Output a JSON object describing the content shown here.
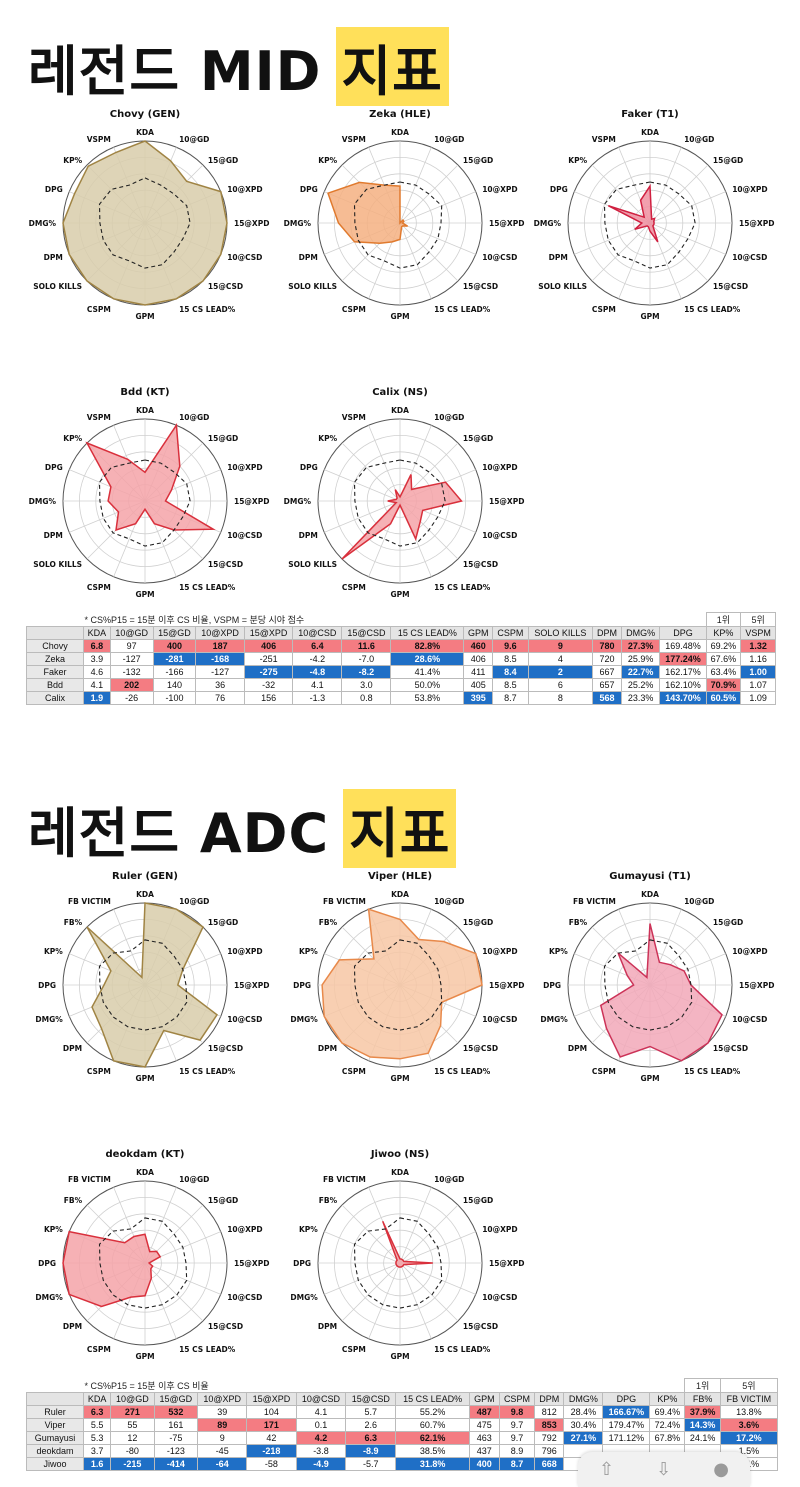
{
  "sections": [
    {
      "heading": "레전드 MID",
      "heading_hl": "지표",
      "note": "* CS%P15 = 15분 이후 CS 비율, VSPM = 분당 시야 점수",
      "legend": {
        "rank1": "1위",
        "rank5": "5위"
      },
      "columns": [
        "KDA",
        "10@GD",
        "15@GD",
        "10@XPD",
        "15@XPD",
        "10@CSD",
        "15@CSD",
        "15 CS LEAD%",
        "GPM",
        "CSPM",
        "SOLO KILLS",
        "DPM",
        "DMG%",
        "DPG",
        "KP%",
        "VSPM"
      ],
      "rows": [
        {
          "name": "Chovy",
          "cells": [
            "6.8",
            "97",
            "400",
            "187",
            "406",
            "6.4",
            "11.6",
            "82.8%",
            "460",
            "9.6",
            "9",
            "780",
            "27.3%",
            "169.48%",
            "69.2%",
            "1.32"
          ]
        },
        {
          "name": "Zeka",
          "cells": [
            "3.9",
            "-127",
            "-281",
            "-168",
            "-251",
            "-4.2",
            "-7.0",
            "28.6%",
            "406",
            "8.5",
            "4",
            "720",
            "25.9%",
            "177.24%",
            "67.6%",
            "1.16"
          ]
        },
        {
          "name": "Faker",
          "cells": [
            "4.6",
            "-132",
            "-166",
            "-127",
            "-275",
            "-4.8",
            "-8.2",
            "41.4%",
            "411",
            "8.4",
            "2",
            "667",
            "22.7%",
            "162.17%",
            "63.4%",
            "1.00"
          ]
        },
        {
          "name": "Bdd",
          "cells": [
            "4.1",
            "202",
            "140",
            "36",
            "-32",
            "4.1",
            "3.0",
            "50.0%",
            "405",
            "8.5",
            "6",
            "657",
            "25.2%",
            "162.10%",
            "70.9%",
            "1.07"
          ]
        },
        {
          "name": "Calix",
          "cells": [
            "1.9",
            "-26",
            "-100",
            "76",
            "156",
            "-1.3",
            "0.8",
            "53.8%",
            "395",
            "8.7",
            "8",
            "568",
            "23.3%",
            "143.70%",
            "60.5%",
            "1.09"
          ]
        }
      ],
      "charts": [
        {
          "title": "Chovy (GEN)",
          "axes": [
            "KDA",
            "10@GD",
            "15@GD",
            "10@XPD",
            "15@XPD",
            "10@CSD",
            "15@CSD",
            "15 CS LEAD%",
            "GPM",
            "CSPM",
            "SOLO KILLS",
            "DPM",
            "DMG%",
            "DPG",
            "KP%",
            "VSPM"
          ],
          "values": [
            1.0,
            0.82,
            0.72,
            1.0,
            1.0,
            1.0,
            1.0,
            1.0,
            1.0,
            1.0,
            1.0,
            1.0,
            1.0,
            0.93,
            0.98,
            0.93
          ],
          "avg": [
            0.55,
            0.5,
            0.5,
            0.55,
            0.55,
            0.5,
            0.5,
            0.55,
            0.55,
            0.5,
            0.55,
            0.55,
            0.55,
            0.6,
            0.58,
            0.5
          ],
          "fill": "#d8ccaa",
          "stroke": "#a08444"
        },
        {
          "title": "Zeka (HLE)",
          "axes": [
            "KDA",
            "10@GD",
            "15@GD",
            "10@XPD",
            "15@XPD",
            "10@CSD",
            "15@CSD",
            "15 CS LEAD%",
            "GPM",
            "CSPM",
            "SOLO KILLS",
            "DPM",
            "DMG%",
            "DPG",
            "KP%",
            "VSPM"
          ],
          "values": [
            0.45,
            0.0,
            0.05,
            0.05,
            0.03,
            0.1,
            0.05,
            0.05,
            0.2,
            0.25,
            0.35,
            0.6,
            0.75,
            0.95,
            0.7,
            0.5
          ],
          "avg": [
            0.5,
            0.5,
            0.5,
            0.55,
            0.5,
            0.5,
            0.5,
            0.55,
            0.55,
            0.5,
            0.55,
            0.55,
            0.55,
            0.6,
            0.58,
            0.5
          ],
          "fill": "#f4b081",
          "stroke": "#e07a2e"
        },
        {
          "title": "Faker (T1)",
          "axes": [
            "KDA",
            "10@GD",
            "15@GD",
            "10@XPD",
            "15@XPD",
            "10@CSD",
            "15@CSD",
            "15 CS LEAD%",
            "GPM",
            "CSPM",
            "SOLO KILLS",
            "DPM",
            "DMG%",
            "DPG",
            "KP%",
            "VSPM"
          ],
          "values": [
            0.45,
            0.05,
            0.08,
            0.05,
            0.05,
            0.05,
            0.05,
            0.25,
            0.1,
            0.05,
            0.05,
            0.2,
            0.1,
            0.55,
            0.1,
            0.3
          ],
          "avg": [
            0.5,
            0.5,
            0.5,
            0.55,
            0.55,
            0.5,
            0.5,
            0.55,
            0.55,
            0.5,
            0.55,
            0.55,
            0.55,
            0.6,
            0.58,
            0.5
          ],
          "fill": "#f08fa0",
          "stroke": "#d02040"
        },
        {
          "title": "Bdd (KT)",
          "axes": [
            "KDA",
            "10@GD",
            "15@GD",
            "10@XPD",
            "15@XPD",
            "10@CSD",
            "15@CSD",
            "15 CS LEAD%",
            "GPM",
            "CSPM",
            "SOLO KILLS",
            "DPM",
            "DMG%",
            "DPG",
            "KP%",
            "VSPM"
          ],
          "values": [
            0.35,
            1.0,
            0.6,
            0.35,
            0.25,
            0.9,
            0.5,
            0.3,
            0.1,
            0.3,
            0.5,
            0.35,
            0.45,
            0.45,
            1.0,
            0.55
          ],
          "avg": [
            0.5,
            0.5,
            0.5,
            0.55,
            0.55,
            0.5,
            0.5,
            0.55,
            0.55,
            0.5,
            0.55,
            0.55,
            0.55,
            0.6,
            0.58,
            0.5
          ],
          "fill": "#f4a3a8",
          "stroke": "#d9303c"
        },
        {
          "title": "Calix (NS)",
          "axes": [
            "KDA",
            "10@GD",
            "15@GD",
            "10@XPD",
            "15@XPD",
            "10@CSD",
            "15@CSD",
            "15 CS LEAD%",
            "GPM",
            "CSPM",
            "SOLO KILLS",
            "DPM",
            "DMG%",
            "DPG",
            "KP%",
            "VSPM"
          ],
          "values": [
            0.05,
            0.35,
            0.2,
            0.6,
            0.75,
            0.3,
            0.35,
            0.5,
            0.05,
            0.3,
            1.0,
            0.05,
            0.15,
            0.05,
            0.05,
            0.15
          ],
          "avg": [
            0.5,
            0.5,
            0.5,
            0.55,
            0.55,
            0.5,
            0.5,
            0.55,
            0.55,
            0.5,
            0.55,
            0.55,
            0.55,
            0.6,
            0.58,
            0.5
          ],
          "fill": "#f4a3a8",
          "stroke": "#d9303c"
        }
      ]
    },
    {
      "heading": "레전드 ADC",
      "heading_hl": "지표",
      "note": "* CS%P15 = 15분 이후 CS 비율",
      "legend": {
        "rank1": "1위",
        "rank5": "5위"
      },
      "columns": [
        "KDA",
        "10@GD",
        "15@GD",
        "10@XPD",
        "15@XPD",
        "10@CSD",
        "15@CSD",
        "15 CS LEAD%",
        "GPM",
        "CSPM",
        "DPM",
        "DMG%",
        "DPG",
        "KP%",
        "FB%",
        "FB VICTIM"
      ],
      "rows": [
        {
          "name": "Ruler",
          "cells": [
            "6.3",
            "271",
            "532",
            "39",
            "104",
            "4.1",
            "5.7",
            "55.2%",
            "487",
            "9.8",
            "812",
            "28.4%",
            "166.67%",
            "69.4%",
            "37.9%",
            "13.8%"
          ]
        },
        {
          "name": "Viper",
          "cells": [
            "5.5",
            "55",
            "161",
            "89",
            "171",
            "0.1",
            "2.6",
            "60.7%",
            "475",
            "9.7",
            "853",
            "30.4%",
            "179.47%",
            "72.4%",
            "14.3%",
            "3.6%"
          ]
        },
        {
          "name": "Gumayusi",
          "cells": [
            "5.3",
            "12",
            "-75",
            "9",
            "42",
            "4.2",
            "6.3",
            "62.1%",
            "463",
            "9.7",
            "792",
            "27.1%",
            "171.12%",
            "67.8%",
            "24.1%",
            "17.2%"
          ]
        },
        {
          "name": "deokdam",
          "cells": [
            "3.7",
            "-80",
            "-123",
            "-45",
            "-218",
            "-3.8",
            "-8.9",
            "38.5%",
            "437",
            "8.9",
            "796",
            "",
            "",
            "",
            "",
            "1.5%"
          ]
        },
        {
          "name": "Jiwoo",
          "cells": [
            "1.6",
            "-215",
            "-414",
            "-64",
            "-58",
            "-4.9",
            "-5.7",
            "31.8%",
            "400",
            "8.7",
            "668",
            "",
            "",
            "",
            "",
            "1.1%"
          ]
        }
      ],
      "charts": [
        {
          "title": "Ruler (GEN)",
          "axes": [
            "KDA",
            "10@GD",
            "15@GD",
            "10@XPD",
            "15@XPD",
            "10@CSD",
            "15@CSD",
            "15 CS LEAD%",
            "GPM",
            "CSPM",
            "DPM",
            "DMG%",
            "DPG",
            "KP%",
            "FB%",
            "FB VICTIM"
          ],
          "values": [
            1.0,
            1.0,
            1.0,
            0.5,
            0.4,
            0.95,
            0.95,
            0.6,
            1.0,
            1.0,
            0.75,
            0.7,
            0.5,
            0.45,
            1.0,
            0.1
          ],
          "avg": [
            0.55,
            0.55,
            0.5,
            0.5,
            0.5,
            0.55,
            0.55,
            0.55,
            0.55,
            0.55,
            0.55,
            0.55,
            0.55,
            0.6,
            0.55,
            0.45
          ],
          "fill": "#d8ccaa",
          "stroke": "#a08444"
        },
        {
          "title": "Viper (HLE)",
          "axes": [
            "KDA",
            "10@GD",
            "15@GD",
            "10@XPD",
            "15@XPD",
            "10@CSD",
            "15@CSD",
            "15 CS LEAD%",
            "GPM",
            "CSPM",
            "DPM",
            "DMG%",
            "DPG",
            "KP%",
            "FB%",
            "FB VICTIM"
          ],
          "values": [
            0.8,
            0.6,
            0.75,
            1.0,
            1.0,
            0.55,
            0.7,
            0.9,
            0.9,
            0.95,
            1.0,
            1.0,
            0.95,
            0.8,
            0.45,
            1.0
          ],
          "avg": [
            0.55,
            0.55,
            0.5,
            0.5,
            0.5,
            0.55,
            0.55,
            0.55,
            0.55,
            0.55,
            0.55,
            0.55,
            0.55,
            0.6,
            0.55,
            0.45
          ],
          "fill": "#f7c7a4",
          "stroke": "#e8894a"
        },
        {
          "title": "Gumayusi (T1)",
          "axes": [
            "KDA",
            "10@GD",
            "15@GD",
            "10@XPD",
            "15@XPD",
            "10@CSD",
            "15@CSD",
            "15 CS LEAD%",
            "GPM",
            "CSPM",
            "DPM",
            "DMG%",
            "DPG",
            "KP%",
            "FB%",
            "FB VICTIM"
          ],
          "values": [
            0.75,
            0.3,
            0.35,
            0.45,
            0.5,
            0.95,
            1.0,
            1.0,
            0.75,
            0.95,
            0.75,
            0.65,
            0.2,
            0.3,
            0.55,
            0.1
          ],
          "avg": [
            0.55,
            0.55,
            0.5,
            0.5,
            0.5,
            0.55,
            0.55,
            0.55,
            0.55,
            0.55,
            0.55,
            0.55,
            0.55,
            0.6,
            0.55,
            0.45
          ],
          "fill": "#f2a8b8",
          "stroke": "#cc3358"
        },
        {
          "title": "deokdam (KT)",
          "axes": [
            "KDA",
            "10@GD",
            "15@GD",
            "10@XPD",
            "15@XPD",
            "10@CSD",
            "15@CSD",
            "15 CS LEAD%",
            "GPM",
            "CSPM",
            "DPM",
            "DMG%",
            "DPG",
            "KP%",
            "FB%",
            "FB VICTIM"
          ],
          "values": [
            0.35,
            0.15,
            0.2,
            0.2,
            0.05,
            0.1,
            0.1,
            0.2,
            0.4,
            0.45,
            0.75,
            1.0,
            1.0,
            1.0,
            0.35,
            0.35
          ],
          "avg": [
            0.55,
            0.55,
            0.5,
            0.5,
            0.5,
            0.55,
            0.55,
            0.55,
            0.55,
            0.55,
            0.55,
            0.55,
            0.55,
            0.6,
            0.55,
            0.45
          ],
          "fill": "#f4a3a8",
          "stroke": "#d9303c"
        },
        {
          "title": "Jiwoo (NS)",
          "axes": [
            "KDA",
            "10@GD",
            "15@GD",
            "10@XPD",
            "15@XPD",
            "10@CSD",
            "15@CSD",
            "15 CS LEAD%",
            "GPM",
            "CSPM",
            "DPM",
            "DMG%",
            "DPG",
            "KP%",
            "FB%",
            "FB VICTIM"
          ],
          "values": [
            0.05,
            0.05,
            0.05,
            0.05,
            0.4,
            0.05,
            0.05,
            0.05,
            0.05,
            0.05,
            0.05,
            0.05,
            0.05,
            0.05,
            0.05,
            0.55
          ],
          "avg": [
            0.55,
            0.55,
            0.5,
            0.5,
            0.5,
            0.55,
            0.55,
            0.55,
            0.55,
            0.55,
            0.55,
            0.55,
            0.55,
            0.6,
            0.55,
            0.45
          ],
          "fill": "#f4a3a8",
          "stroke": "#d9303c"
        }
      ]
    }
  ],
  "highlights": [
    {
      "r1": [
        [
          0,
          0
        ],
        [
          0,
          2
        ],
        [
          0,
          3
        ],
        [
          0,
          4
        ],
        [
          0,
          5
        ],
        [
          0,
          6
        ],
        [
          0,
          7
        ],
        [
          0,
          8
        ],
        [
          0,
          9
        ],
        [
          0,
          10
        ],
        [
          0,
          11
        ],
        [
          0,
          12
        ],
        [
          0,
          15
        ],
        [
          1,
          13
        ],
        [
          3,
          1
        ],
        [
          3,
          14
        ]
      ],
      "r5": [
        [
          4,
          0
        ],
        [
          1,
          2
        ],
        [
          1,
          3
        ],
        [
          2,
          4
        ],
        [
          2,
          5
        ],
        [
          2,
          6
        ],
        [
          1,
          7
        ],
        [
          4,
          8
        ],
        [
          2,
          9
        ],
        [
          2,
          10
        ],
        [
          4,
          11
        ],
        [
          2,
          12
        ],
        [
          4,
          13
        ],
        [
          4,
          14
        ],
        [
          2,
          15
        ]
      ]
    },
    {
      "r1": [
        [
          0,
          0
        ],
        [
          0,
          1
        ],
        [
          0,
          2
        ],
        [
          1,
          3
        ],
        [
          1,
          4
        ],
        [
          2,
          5
        ],
        [
          2,
          6
        ],
        [
          2,
          7
        ],
        [
          0,
          8
        ],
        [
          0,
          9
        ],
        [
          1,
          10
        ],
        [
          0,
          14
        ],
        [
          1,
          15
        ]
      ],
      "r5": [
        [
          4,
          0
        ],
        [
          4,
          1
        ],
        [
          4,
          2
        ],
        [
          4,
          3
        ],
        [
          3,
          4
        ],
        [
          4,
          5
        ],
        [
          3,
          6
        ],
        [
          4,
          7
        ],
        [
          4,
          8
        ],
        [
          4,
          9
        ],
        [
          4,
          10
        ],
        [
          2,
          11
        ],
        [
          0,
          12
        ],
        [
          1,
          14
        ],
        [
          2,
          15
        ]
      ]
    }
  ],
  "toolbar": {
    "icons": [
      "share-icon",
      "download-icon",
      "comment-icon"
    ]
  }
}
